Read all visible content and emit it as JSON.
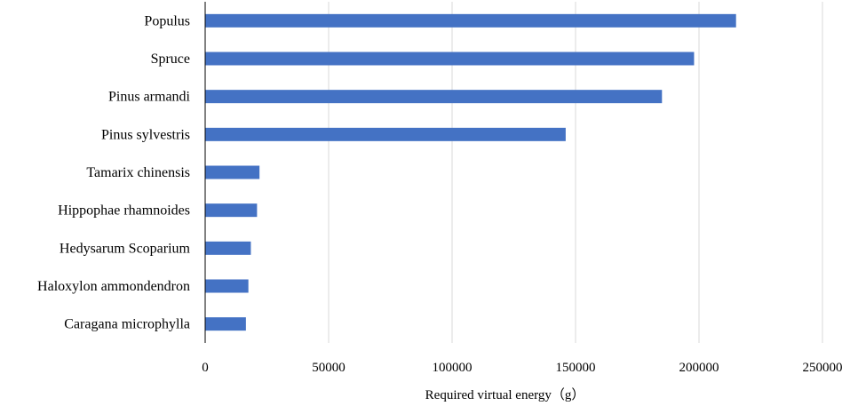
{
  "chart_data": {
    "type": "bar",
    "orientation": "horizontal",
    "categories": [
      "Populus",
      "Spruce",
      "Pinus armandi",
      "Pinus sylvestris",
      "Tamarix chinensis",
      "Hippophae rhamnoides",
      "Hedysarum Scoparium",
      "Haloxylon ammondendron",
      "Caragana microphylla"
    ],
    "values": [
      215000,
      198000,
      185000,
      146000,
      22000,
      21000,
      18500,
      17500,
      16500
    ],
    "xlabel": "Required virtual energy（g）",
    "ylabel": "",
    "title": "",
    "xlim": [
      0,
      250000
    ],
    "xticks": [
      "0",
      "50000",
      "100000",
      "150000",
      "200000",
      "250000"
    ],
    "grid": "vertical",
    "legend": "none",
    "bar_color": "#4472C4",
    "grid_color": "#d9d9d9"
  }
}
